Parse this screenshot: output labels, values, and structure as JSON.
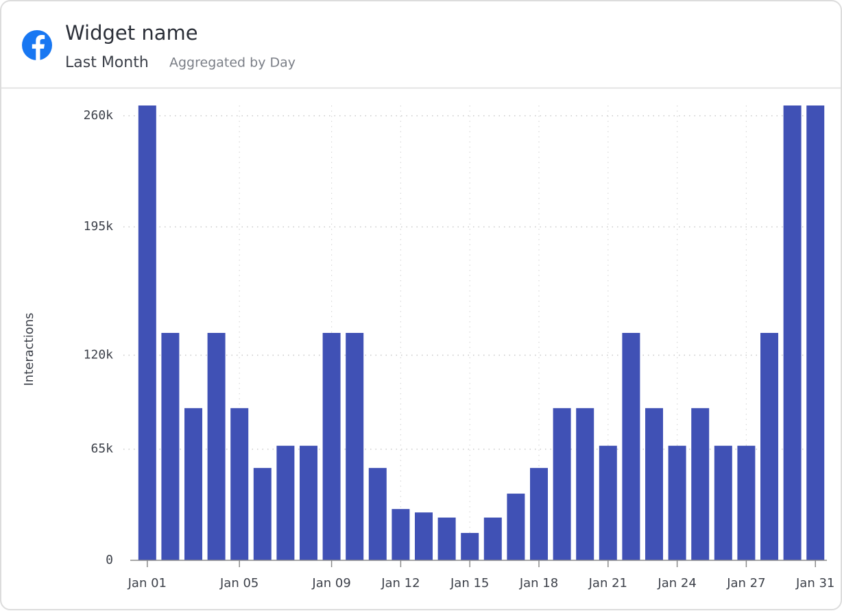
{
  "header": {
    "title": "Widget name",
    "period": "Last Month",
    "aggregation": "Aggregated by Day"
  },
  "chart_data": {
    "type": "bar",
    "y_label": "Interactions",
    "color": "#4051b5",
    "categories": [
      "Jan 01",
      null,
      null,
      null,
      "Jan 05",
      null,
      null,
      null,
      "Jan 09",
      null,
      null,
      "Jan 12",
      null,
      null,
      "Jan 15",
      null,
      null,
      "Jan 18",
      null,
      null,
      "Jan 21",
      null,
      null,
      "Jan 24",
      null,
      null,
      "Jan 27",
      null,
      null,
      "Jan 31"
    ],
    "values": [
      266000,
      133000,
      89000,
      133000,
      89000,
      54000,
      67000,
      67000,
      133000,
      133000,
      54000,
      30000,
      28000,
      25000,
      16000,
      25000,
      39000,
      54000,
      89000,
      89000,
      67000,
      133000,
      89000,
      67000,
      89000,
      67000,
      67000,
      133000,
      266000,
      266000
    ],
    "ylim": [
      0,
      266000
    ],
    "yticks": [
      0,
      {
        "value": 65000,
        "label": "65k"
      },
      {
        "value": 120000,
        "label": "120k"
      },
      {
        "value": 195000,
        "label": "195k"
      },
      {
        "value": 260000,
        "label": "260k"
      }
    ],
    "grid": true
  }
}
